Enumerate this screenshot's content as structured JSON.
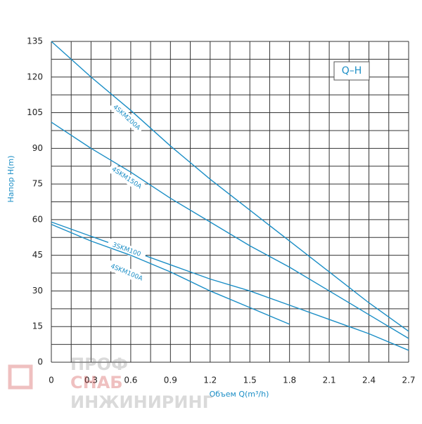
{
  "chart_data": {
    "type": "line",
    "title": "Q–H",
    "x_label": "Объем Q(m³/h)",
    "y_label": "Напор H(m)",
    "x": [
      0,
      0.3,
      0.6,
      0.9,
      1.2,
      1.5,
      1.8,
      2.1,
      2.4,
      2.7
    ],
    "series": [
      {
        "name": "4SKM200A",
        "color": "#1b8ec6",
        "values": [
          135,
          120,
          106,
          91,
          77,
          64,
          51,
          38,
          25,
          13
        ]
      },
      {
        "name": "4SKM150A",
        "color": "#1b8ec6",
        "values": [
          101,
          90,
          80,
          69,
          59,
          49,
          40,
          30,
          20,
          10
        ]
      },
      {
        "name": "3SKM100",
        "color": "#1b8ec6",
        "values": [
          59,
          53,
          47,
          41,
          35,
          30,
          24,
          18,
          12,
          5
        ]
      },
      {
        "name": "4SKM100A",
        "color": "#1b8ec6",
        "values": [
          58,
          51,
          45,
          38,
          30,
          23,
          16,
          null,
          null,
          null
        ]
      }
    ],
    "xlim": [
      0,
      2.7
    ],
    "ylim": [
      0,
      135
    ],
    "xticks": [
      0,
      0.3,
      0.6,
      0.9,
      1.2,
      1.5,
      1.8,
      2.1,
      2.4,
      2.7
    ],
    "yticks": [
      0,
      15,
      30,
      45,
      60,
      75,
      90,
      105,
      120,
      135
    ],
    "grid": true
  },
  "watermark": [
    "ПРОФ",
    "СНАБ",
    "ИНЖИНИРИНГ"
  ]
}
